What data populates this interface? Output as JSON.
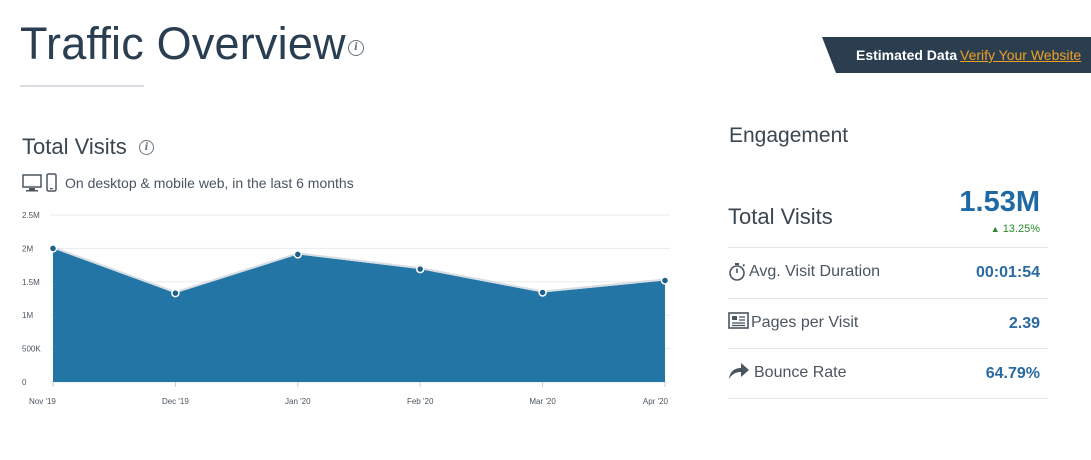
{
  "header": {
    "title": "Traffic Overview",
    "banner_label": "Estimated Data",
    "banner_link": "Verify Your Website"
  },
  "visits": {
    "title": "Total Visits",
    "device_text": "On desktop & mobile web, in the last 6 months"
  },
  "engagement": {
    "title": "Engagement",
    "total_visits_label": "Total Visits",
    "total_visits_value": "1.53M",
    "total_visits_change": "13.25%",
    "rows": [
      {
        "label": "Avg. Visit Duration",
        "value": "00:01:54",
        "icon": "stopwatch-icon"
      },
      {
        "label": "Pages per Visit",
        "value": "2.39",
        "icon": "pages-icon"
      },
      {
        "label": "Bounce Rate",
        "value": "64.79%",
        "icon": "bounce-arrow-icon"
      }
    ]
  },
  "colors": {
    "area_fill": "#2275a5",
    "banner_bg": "#2b3e50",
    "link": "#f0a023",
    "value_blue": "#2a6aa3",
    "positive_green": "#2a8a2a"
  },
  "chart_data": {
    "type": "area",
    "categories": [
      "Nov '19",
      "Dec '19",
      "Jan '20",
      "Feb '20",
      "Mar '20",
      "Apr '20"
    ],
    "series": [
      {
        "values": [
          2000000,
          1330000,
          1910000,
          1690000,
          1340000,
          1520000
        ]
      }
    ],
    "y_ticks": [
      "0",
      "500K",
      "1M",
      "1.5M",
      "2M",
      "2.5M"
    ],
    "ylim": [
      0,
      2500000
    ],
    "grid": true
  }
}
